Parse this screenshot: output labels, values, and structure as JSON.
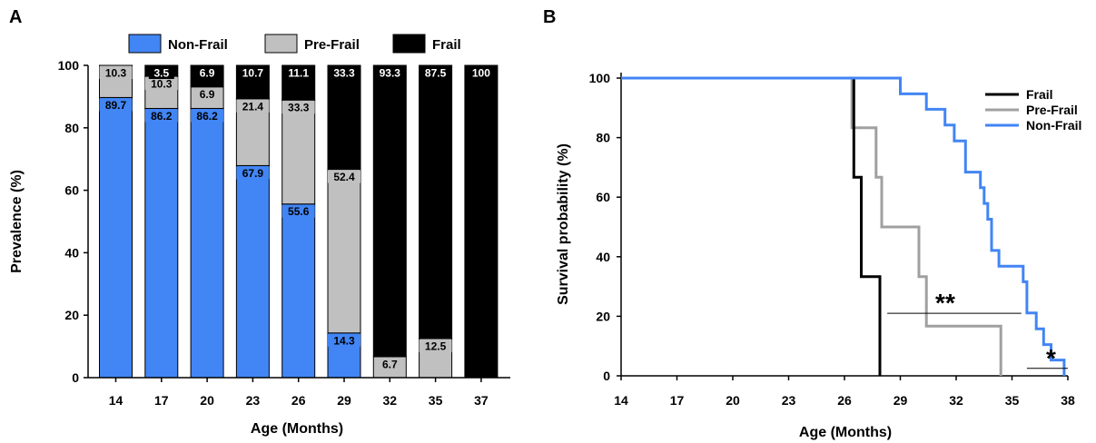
{
  "chart_data": [
    {
      "panel_label": "A",
      "type": "bar",
      "stacked": true,
      "categories": [
        "14",
        "17",
        "20",
        "23",
        "26",
        "29",
        "32",
        "35",
        "37"
      ],
      "series": [
        {
          "name": "Non-Frail",
          "color": "#4285f4",
          "values": [
            89.7,
            86.2,
            86.2,
            67.9,
            55.6,
            14.3,
            0,
            0,
            0
          ],
          "labels": [
            "89.7",
            "86.2",
            "86.2",
            "67.9",
            "55.6",
            "14.3",
            "",
            "",
            ""
          ]
        },
        {
          "name": "Pre-Frail",
          "color": "#c0c0c0",
          "values": [
            10.3,
            10.3,
            6.9,
            21.4,
            33.3,
            52.4,
            6.7,
            12.5,
            0
          ],
          "labels": [
            "10.3",
            "10.3",
            "6.9",
            "21.4",
            "33.3",
            "52.4",
            "6.7",
            "12.5",
            ""
          ]
        },
        {
          "name": "Frail",
          "color": "#000000",
          "values": [
            0,
            3.5,
            6.9,
            10.7,
            11.1,
            33.3,
            93.3,
            87.5,
            100
          ],
          "labels": [
            "",
            "3.5",
            "6.9",
            "10.7",
            "11.1",
            "33.3",
            "93.3",
            "87.5",
            "100"
          ]
        }
      ],
      "xlabel": "Age (Months)",
      "ylabel": "Prevalence (%)",
      "ylim": [
        0,
        100
      ],
      "yticks": [
        "0",
        "20",
        "40",
        "60",
        "80",
        "100"
      ],
      "legend": "top"
    },
    {
      "panel_label": "B",
      "type": "line",
      "step": true,
      "xlabel": "Age (Months)",
      "ylabel": "Survival probability (%)",
      "xlim": [
        14,
        38
      ],
      "ylim": [
        0,
        100
      ],
      "xticks": [
        "14",
        "17",
        "20",
        "23",
        "26",
        "29",
        "32",
        "35",
        "38"
      ],
      "yticks": [
        "0",
        "20",
        "40",
        "60",
        "80",
        "100"
      ],
      "series": [
        {
          "name": "Frail",
          "color": "#000000",
          "x": [
            14,
            26.5,
            26.5,
            26.9,
            26.9,
            27.9,
            27.9
          ],
          "y": [
            100,
            100,
            66.7,
            66.7,
            33.3,
            33.3,
            0
          ]
        },
        {
          "name": "Pre-Frail",
          "color": "#a0a0a0",
          "x": [
            14,
            26.4,
            26.4,
            27.7,
            27.7,
            28.0,
            28.0,
            30.0,
            30.0,
            30.4,
            30.4,
            34.4,
            34.4
          ],
          "y": [
            100,
            100,
            83.3,
            83.3,
            66.7,
            66.7,
            50,
            50,
            33.3,
            33.3,
            16.7,
            16.7,
            0
          ]
        },
        {
          "name": "Non-Frail",
          "color": "#4285f4",
          "x": [
            14,
            29.0,
            29.0,
            30.4,
            30.4,
            31.4,
            31.4,
            31.9,
            31.9,
            32.5,
            32.5,
            33.3,
            33.3,
            33.5,
            33.5,
            33.7,
            33.7,
            33.9,
            33.9,
            34.3,
            34.3,
            35.6,
            35.6,
            35.8,
            35.8,
            36.3,
            36.3,
            36.7,
            36.7,
            37.1,
            37.1,
            37.8,
            37.8
          ],
          "y": [
            100,
            100,
            94.7,
            94.7,
            89.5,
            89.5,
            84.2,
            84.2,
            78.9,
            78.9,
            68.4,
            68.4,
            63.2,
            63.2,
            57.9,
            57.9,
            52.6,
            52.6,
            42.1,
            42.1,
            36.8,
            36.8,
            31.6,
            31.6,
            21.1,
            21.1,
            15.8,
            15.8,
            10.5,
            10.5,
            5.3,
            5.3,
            0
          ]
        }
      ],
      "legend": "top-right",
      "annotations": [
        {
          "text": "**",
          "x1": 28.3,
          "x2": 35.5,
          "y": 21
        },
        {
          "text": "*",
          "x1": 35.8,
          "x2": 38.0,
          "y": 2.5
        }
      ]
    }
  ]
}
